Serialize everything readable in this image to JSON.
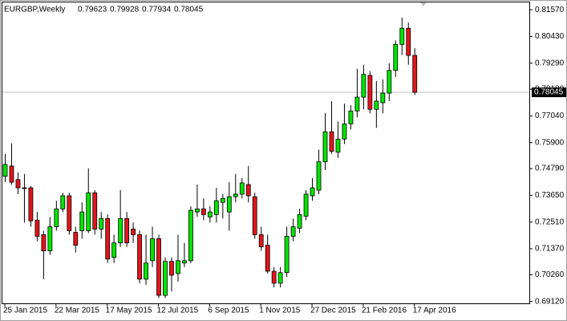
{
  "chart_data": {
    "type": "candlestick",
    "title": "EURGBP,Weekly",
    "categories": [
      "25 Jan 2015",
      null,
      null,
      null,
      null,
      null,
      null,
      null,
      "22 Mar 2015",
      null,
      null,
      null,
      null,
      null,
      null,
      null,
      "17 May 2015",
      null,
      null,
      null,
      null,
      null,
      null,
      null,
      "12 Jul 2015",
      null,
      null,
      null,
      null,
      null,
      null,
      null,
      "6 Sep 2015",
      null,
      null,
      null,
      null,
      null,
      null,
      null,
      "1 Nov 2015",
      null,
      null,
      null,
      null,
      null,
      null,
      null,
      "27 Dec 2015",
      null,
      null,
      null,
      null,
      null,
      null,
      null,
      "21 Feb 2016",
      null,
      null,
      null,
      null,
      null,
      null,
      null,
      "17 Apr 2016"
    ],
    "open": [
      0.7446,
      0.749,
      0.7432,
      0.7397,
      0.7397,
      0.7259,
      0.7197,
      0.7128,
      0.7231,
      0.7307,
      0.7363,
      0.7207,
      0.7214,
      0.7214,
      0.7376,
      0.7221,
      0.7266,
      0.71,
      0.7162,
      0.7266,
      0.7221,
      0.7197,
      0.7007,
      0.7086,
      0.718,
      0.6938,
      0.7083,
      0.7031,
      0.7076,
      0.7086,
      0.7294,
      0.7307,
      0.7273,
      0.7283,
      0.7335,
      0.7294,
      0.7359,
      0.737,
      0.7411,
      0.7359,
      0.7197,
      0.7152,
      0.7041,
      0.699,
      0.7035,
      0.719,
      0.7225,
      0.7276,
      0.7363,
      0.7387,
      0.7508,
      0.7636,
      0.7549,
      0.7605,
      0.767,
      0.7725,
      0.7784,
      0.7877,
      0.7732,
      0.776,
      0.7801,
      0.7898,
      0.8009,
      0.8078,
      0.79623
    ],
    "high": [
      0.7542,
      0.7587,
      0.7463,
      0.7456,
      0.7404,
      0.7294,
      0.7214,
      0.7273,
      0.7342,
      0.7376,
      0.7376,
      0.7231,
      0.7335,
      0.748,
      0.7387,
      0.7294,
      0.7283,
      0.7197,
      0.7387,
      0.7294,
      0.7249,
      0.7214,
      0.7197,
      0.7231,
      0.7197,
      0.71,
      0.71,
      0.7197,
      0.7162,
      0.7318,
      0.7411,
      0.7352,
      0.7318,
      0.7397,
      0.737,
      0.7421,
      0.7456,
      0.7439,
      0.749,
      0.7376,
      0.7231,
      0.7197,
      0.7059,
      0.7059,
      0.7231,
      0.7266,
      0.7307,
      0.7387,
      0.7439,
      0.756,
      0.7715,
      0.7767,
      0.768,
      0.7756,
      0.7749,
      0.7905,
      0.7922,
      0.7895,
      0.7853,
      0.786,
      0.7929,
      0.8026,
      0.8123,
      0.8102,
      0.79928
    ],
    "low": [
      0.7421,
      0.7411,
      0.737,
      0.7249,
      0.7231,
      0.7169,
      0.7007,
      0.7111,
      0.7214,
      0.7294,
      0.7197,
      0.7121,
      0.718,
      0.7204,
      0.7197,
      0.718,
      0.7076,
      0.7076,
      0.7145,
      0.7145,
      0.7162,
      0.699,
      0.6983,
      0.7059,
      0.6927,
      0.6927,
      0.6955,
      0.6997,
      0.7059,
      0.7076,
      0.7273,
      0.7259,
      0.7249,
      0.7249,
      0.7266,
      0.7214,
      0.7335,
      0.7352,
      0.7335,
      0.718,
      0.7128,
      0.7031,
      0.6972,
      0.6972,
      0.7017,
      0.7169,
      0.7204,
      0.7259,
      0.7342,
      0.737,
      0.7473,
      0.7542,
      0.7525,
      0.7584,
      0.7646,
      0.7698,
      0.7732,
      0.7715,
      0.7653,
      0.7715,
      0.7767,
      0.787,
      0.7964,
      0.7922,
      0.77934
    ],
    "close": [
      0.7497,
      0.7421,
      0.7397,
      0.7394,
      0.7256,
      0.719,
      0.7128,
      0.7231,
      0.7307,
      0.7363,
      0.7214,
      0.7152,
      0.7294,
      0.7376,
      0.7221,
      0.7266,
      0.7093,
      0.7162,
      0.7266,
      0.7162,
      0.7197,
      0.7007,
      0.7076,
      0.718,
      0.6938,
      0.7083,
      0.7024,
      0.7086,
      0.7086,
      0.7301,
      0.7307,
      0.7283,
      0.7294,
      0.7342,
      0.7352,
      0.7359,
      0.737,
      0.7418,
      0.7363,
      0.7197,
      0.7145,
      0.7041,
      0.699,
      0.7035,
      0.719,
      0.7231,
      0.7283,
      0.737,
      0.7397,
      0.7508,
      0.7636,
      0.7553,
      0.7605,
      0.767,
      0.7725,
      0.7784,
      0.7881,
      0.7732,
      0.7767,
      0.7801,
      0.7898,
      0.8009,
      0.8078,
      0.7962,
      0.78045
    ],
    "up_color": "#00e600",
    "down_color": "#e3151b",
    "ylim": [
      0.6904,
      0.81985
    ],
    "yticks": [
      {
        "value": 0.8157,
        "label": "0.81570"
      },
      {
        "value": 0.8043,
        "label": "0.80430"
      },
      {
        "value": 0.7929,
        "label": "0.79290"
      },
      {
        "value": 0.7818,
        "label": "0.78180"
      },
      {
        "value": 0.7704,
        "label": "0.77040"
      },
      {
        "value": 0.759,
        "label": "0.75900"
      },
      {
        "value": 0.7479,
        "label": "0.74790"
      },
      {
        "value": 0.7365,
        "label": "0.73650"
      },
      {
        "value": 0.7251,
        "label": "0.72510"
      },
      {
        "value": 0.7137,
        "label": "0.71370"
      },
      {
        "value": 0.7026,
        "label": "0.70260"
      },
      {
        "value": 0.6912,
        "label": "0.69120"
      }
    ]
  }
}
